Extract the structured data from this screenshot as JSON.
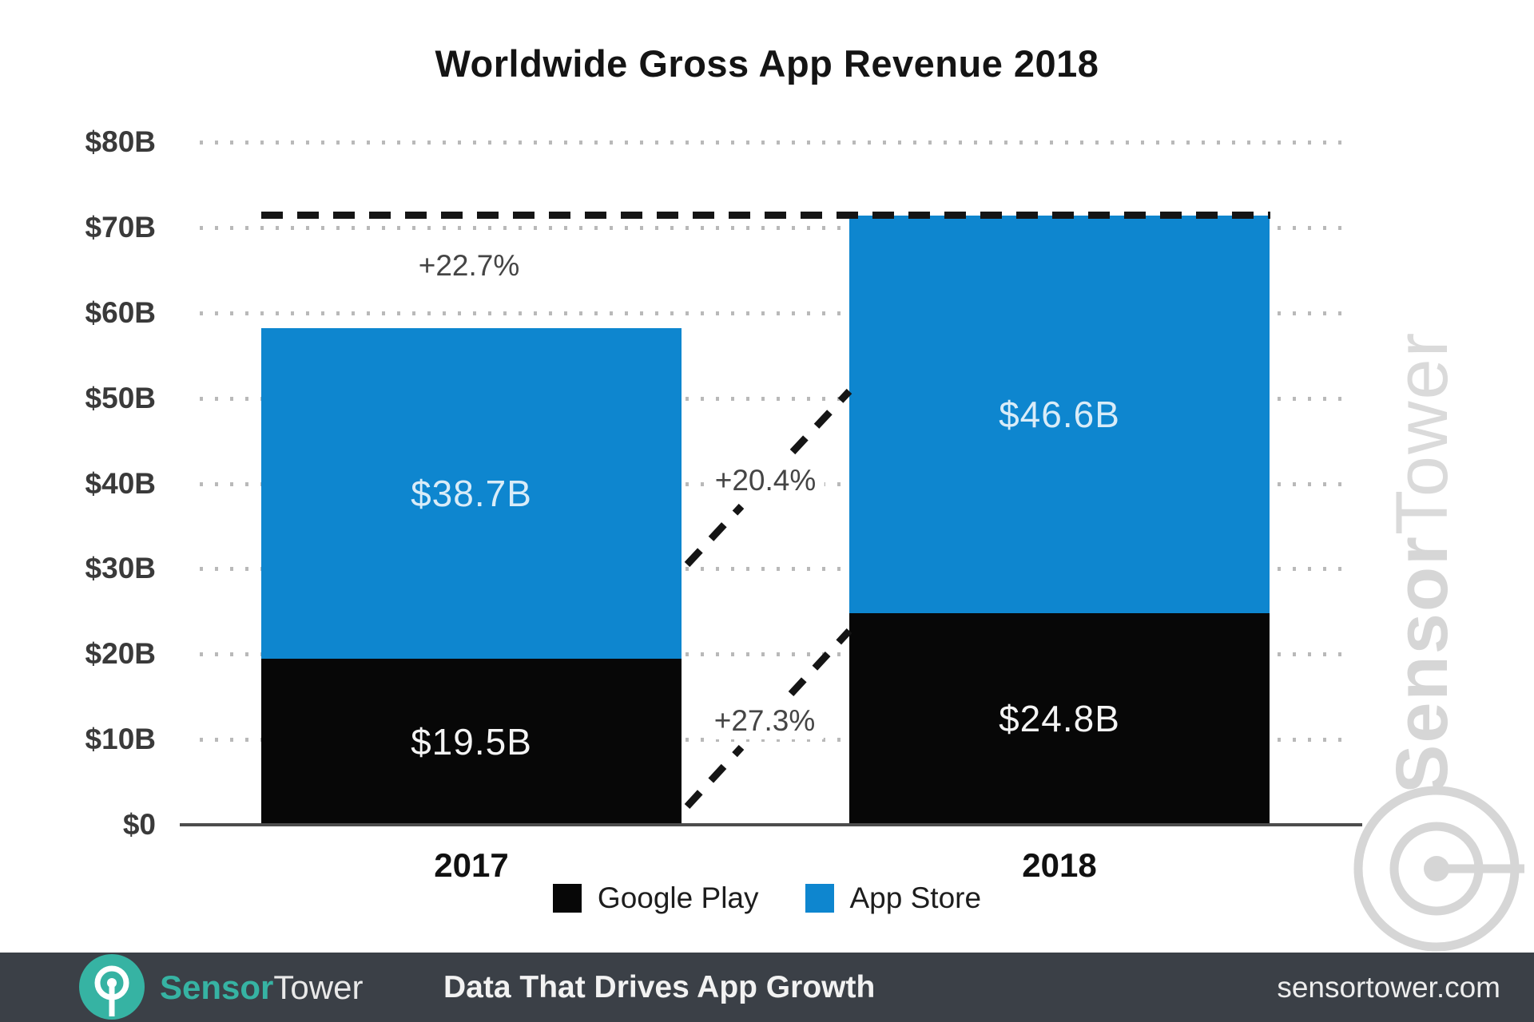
{
  "chart_data": {
    "type": "bar",
    "stacked": true,
    "title": "Worldwide Gross App Revenue 2018",
    "categories": [
      "2017",
      "2018"
    ],
    "series": [
      {
        "name": "Google Play",
        "color": "#070707",
        "values": [
          19.5,
          24.8
        ],
        "data_labels": [
          "$19.5B",
          "$24.8B"
        ],
        "label_color": "#f4f4f4"
      },
      {
        "name": "App Store",
        "color": "#0e86cf",
        "values": [
          38.7,
          46.6
        ],
        "data_labels": [
          "$38.7B",
          "$46.6B"
        ],
        "label_color": "#d9ecf8"
      }
    ],
    "totals": [
      58.2,
      71.4
    ],
    "growth_annotations": {
      "total": "+22.7%",
      "app_store": "+20.4%",
      "google_play": "+27.3%"
    },
    "reference_line": {
      "value": 71.4,
      "style": "dashed"
    },
    "y_axis": {
      "min": 0,
      "max": 80,
      "tick_labels": [
        "$0",
        "$10B",
        "$20B",
        "$30B",
        "$40B",
        "$50B",
        "$60B",
        "$70B",
        "$80B"
      ]
    },
    "grid": "dotted-horizontal",
    "legend": {
      "position": "bottom",
      "items": [
        {
          "label": "Google Play",
          "color": "#070707"
        },
        {
          "label": "App Store",
          "color": "#0e86cf"
        }
      ]
    }
  },
  "watermark": {
    "bold_part": "Sensor",
    "light_part": "Tower"
  },
  "footer": {
    "brand_bold": "Sensor",
    "brand_light": "Tower",
    "tagline": "Data That Drives App Growth",
    "website": "sensortower.com",
    "background": "#3b4047",
    "accent": "#36b3a3"
  }
}
